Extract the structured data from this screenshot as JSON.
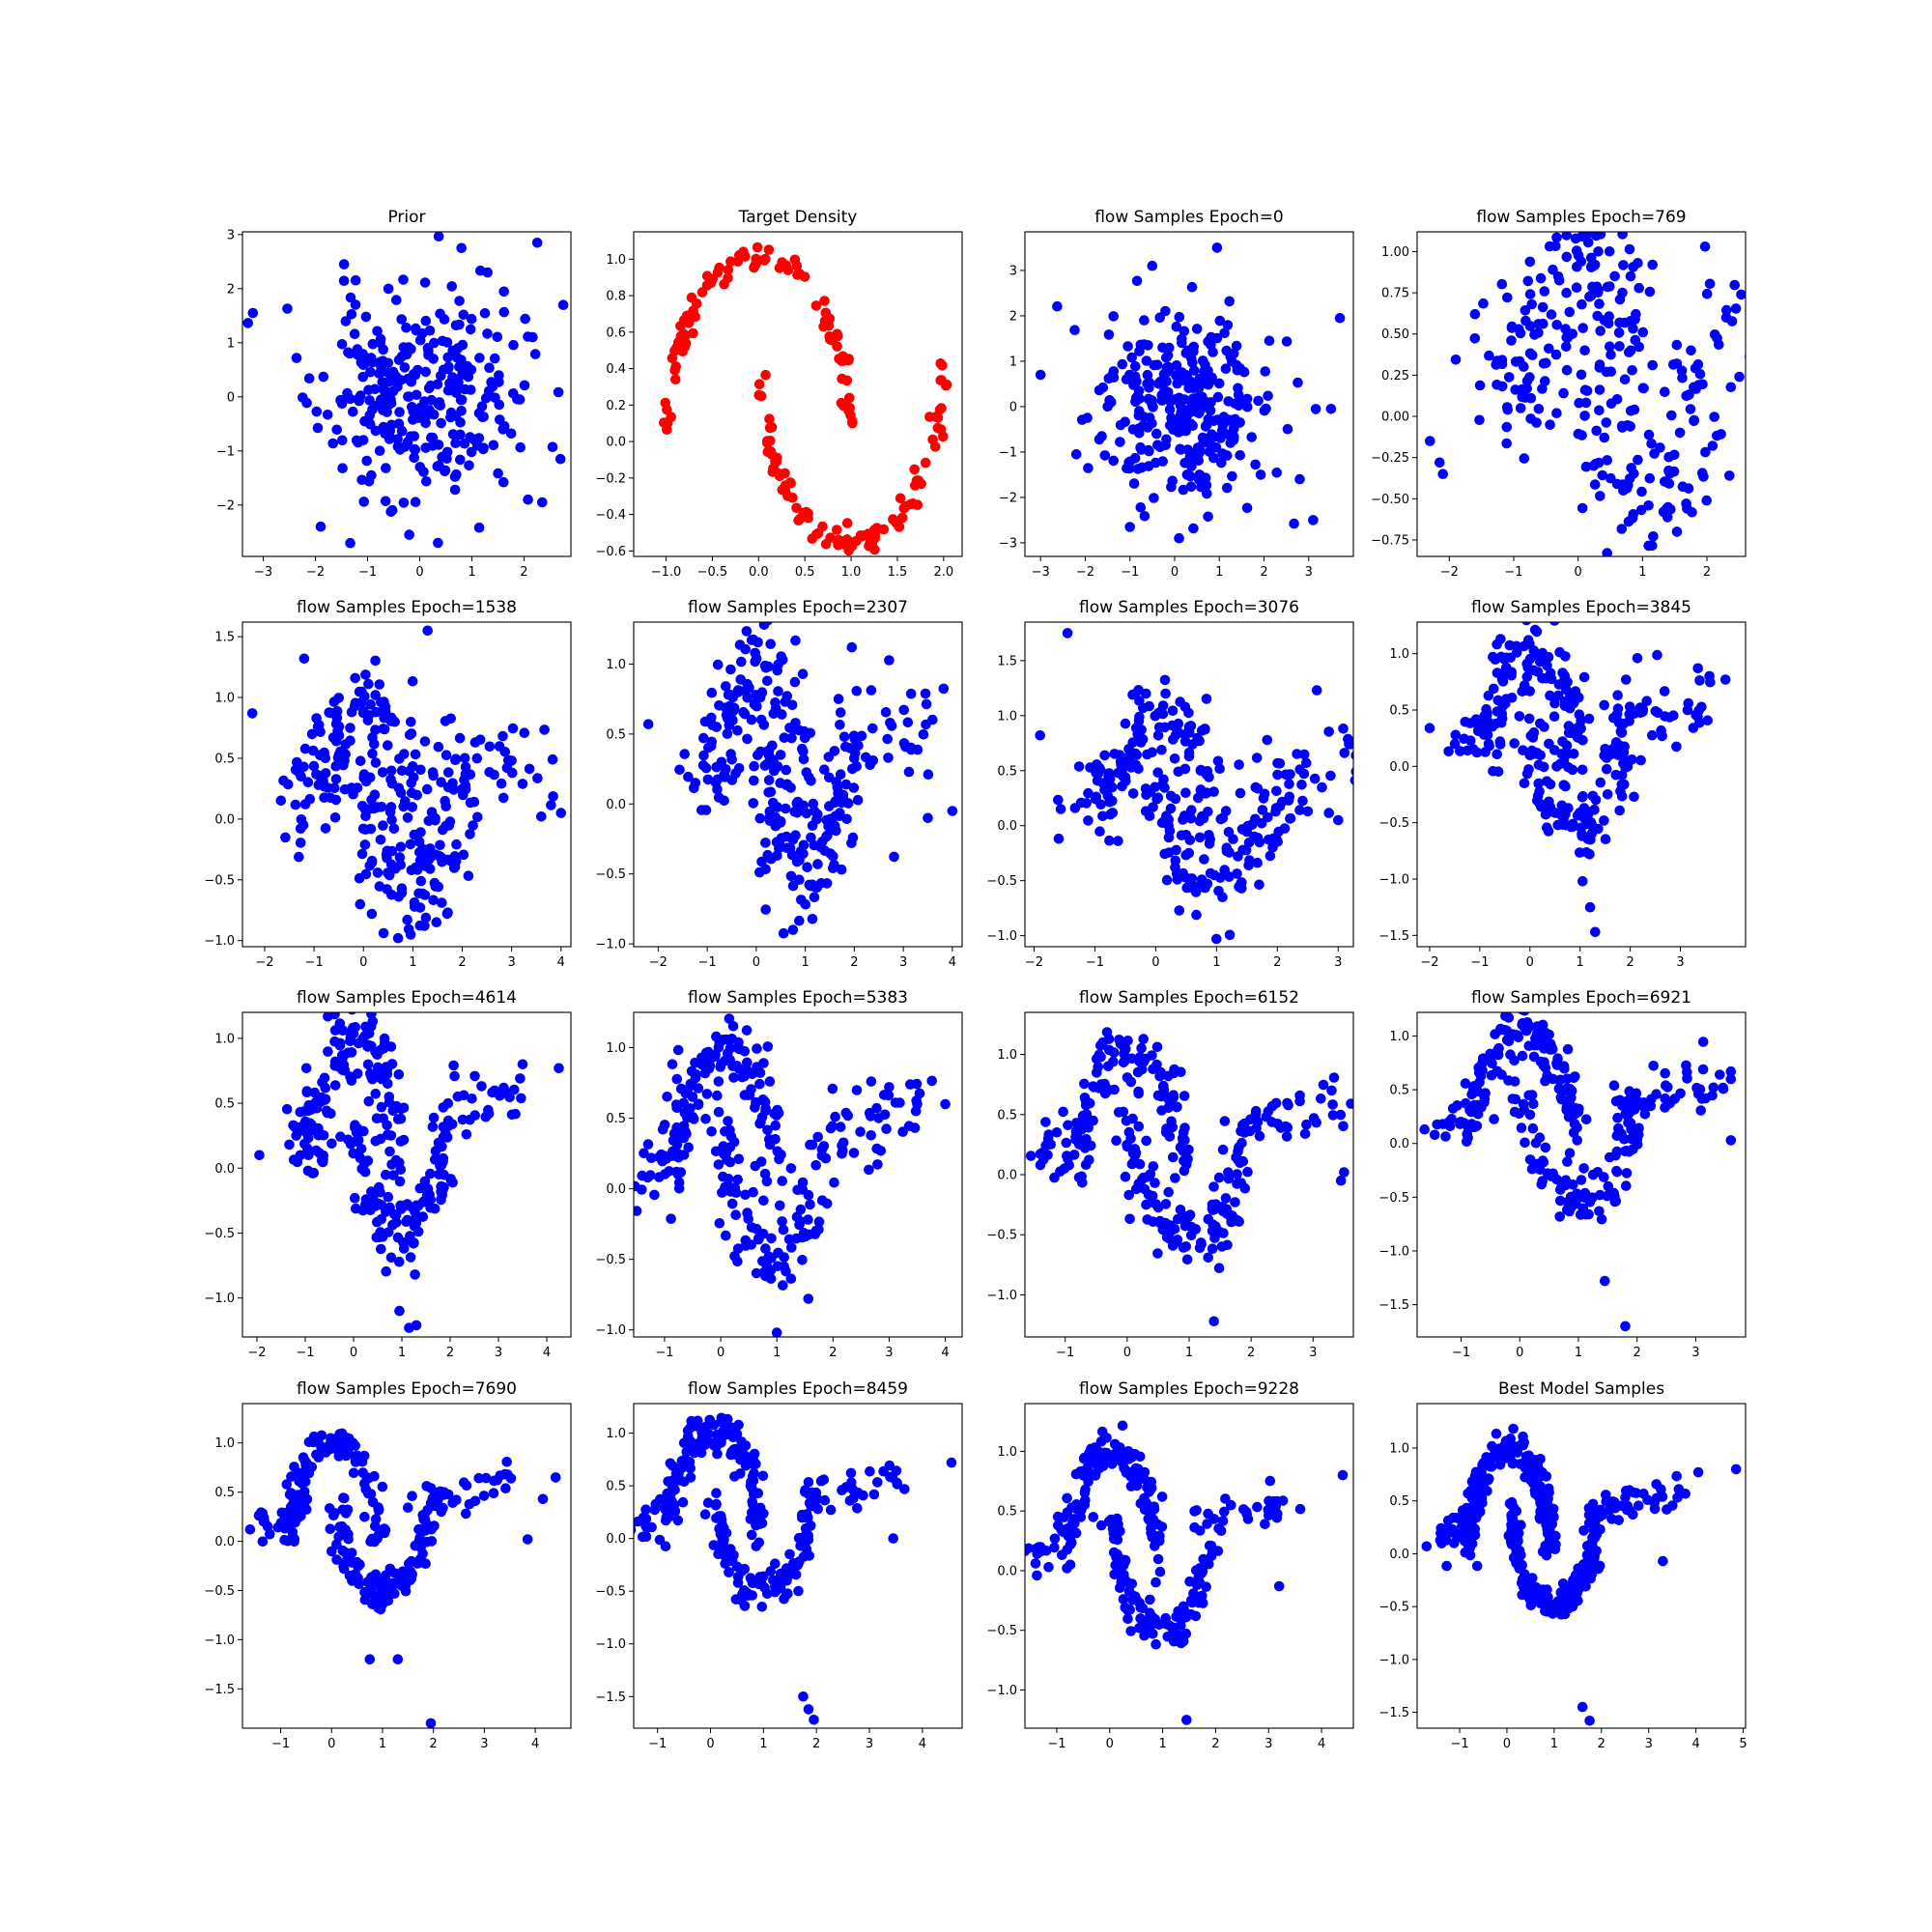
{
  "figure": {
    "background": "#ffffff",
    "layout": "4x4 grid"
  },
  "chart_data": [
    {
      "type": "scatter",
      "title": "Prior",
      "color": "#0000ff",
      "xlim": [
        -3.4,
        2.9
      ],
      "ylim": [
        -2.95,
        3.05
      ],
      "xticks": [
        -3,
        -2,
        -1,
        0,
        1,
        2
      ],
      "yticks": [
        -2,
        -1,
        0,
        1,
        2,
        3
      ],
      "xtick_labels": [
        "−3",
        "−2",
        "−1",
        "0",
        "1",
        "2"
      ],
      "ytick_labels": [
        "−2",
        "−1",
        "0",
        "1",
        "2",
        "3"
      ],
      "shape": "isotropic-gaussian",
      "cx": 0.0,
      "cy": 0.0,
      "sx": 0.95,
      "sy": 0.95,
      "n": 300,
      "seed": 11,
      "points": [
        [
          -3.2,
          1.55
        ],
        [
          0.8,
          2.75
        ],
        [
          -1.45,
          2.45
        ],
        [
          1.3,
          2.3
        ],
        [
          2.7,
          -1.15
        ],
        [
          0.35,
          -2.7
        ],
        [
          -0.2,
          -2.55
        ],
        [
          -1.9,
          -2.4
        ],
        [
          2.35,
          -1.95
        ]
      ]
    },
    {
      "type": "scatter",
      "title": "Target Density",
      "color": "#ff0000",
      "xlim": [
        -1.35,
        2.2
      ],
      "ylim": [
        -0.63,
        1.15
      ],
      "xticks": [
        -1.0,
        -0.5,
        0.0,
        0.5,
        1.0,
        1.5,
        2.0
      ],
      "yticks": [
        -0.6,
        -0.4,
        -0.2,
        0.0,
        0.2,
        0.4,
        0.6,
        0.8,
        1.0
      ],
      "xtick_labels": [
        "−1.0",
        "−0.5",
        "0.0",
        "0.5",
        "1.0",
        "1.5",
        "2.0"
      ],
      "ytick_labels": [
        "−0.6",
        "−0.4",
        "−0.2",
        "0.0",
        "0.2",
        "0.4",
        "0.6",
        "0.8",
        "1.0"
      ],
      "shape": "two-moons",
      "n": 200,
      "noise": 0.035,
      "seed": 5,
      "points": []
    },
    {
      "type": "scatter",
      "title": "flow Samples Epoch=0",
      "color": "#0000ff",
      "xlim": [
        -3.35,
        4.0
      ],
      "ylim": [
        -3.3,
        3.85
      ],
      "xticks": [
        -3,
        -2,
        -1,
        0,
        1,
        2,
        3
      ],
      "yticks": [
        -3,
        -2,
        -1,
        0,
        1,
        2,
        3
      ],
      "xtick_labels": [
        "−3",
        "−2",
        "−1",
        "0",
        "1",
        "2",
        "3"
      ],
      "ytick_labels": [
        "−3",
        "−2",
        "−1",
        "0",
        "1",
        "2",
        "3"
      ],
      "shape": "isotropic-gaussian",
      "cx": 0.2,
      "cy": 0.0,
      "sx": 1.0,
      "sy": 1.05,
      "n": 300,
      "seed": 21,
      "points": [
        [
          0.95,
          3.5
        ],
        [
          -0.5,
          3.1
        ],
        [
          -3.0,
          0.7
        ],
        [
          3.7,
          1.95
        ],
        [
          3.5,
          -0.05
        ],
        [
          0.1,
          -2.9
        ],
        [
          -1.0,
          -2.65
        ],
        [
          3.1,
          -2.5
        ],
        [
          2.8,
          -1.6
        ],
        [
          -2.2,
          -1.05
        ]
      ]
    },
    {
      "type": "scatter",
      "title": "flow Samples Epoch=769",
      "color": "#0000ff",
      "xlim": [
        -2.5,
        2.6
      ],
      "ylim": [
        -0.85,
        1.12
      ],
      "xticks": [
        -2,
        -1,
        0,
        1,
        2
      ],
      "yticks": [
        -0.75,
        -0.5,
        -0.25,
        0.0,
        0.25,
        0.5,
        0.75,
        1.0
      ],
      "xtick_labels": [
        "−2",
        "−1",
        "0",
        "1",
        "2"
      ],
      "ytick_labels": [
        "−0.75",
        "−0.50",
        "−0.25",
        "0.00",
        "0.25",
        "0.50",
        "0.75",
        "1.00"
      ],
      "shape": "flow-moons",
      "stage": 0.3,
      "n": 300,
      "seed": 31,
      "points": [
        [
          -2.3,
          -0.15
        ],
        [
          -2.15,
          -0.28
        ],
        [
          -2.1,
          -0.35
        ],
        [
          2.3,
          0.6
        ],
        [
          2.35,
          -0.36
        ],
        [
          0.45,
          -0.83
        ]
      ]
    },
    {
      "type": "scatter",
      "title": "flow Samples Epoch=1538",
      "color": "#0000ff",
      "xlim": [
        -2.45,
        4.2
      ],
      "ylim": [
        -1.05,
        1.62
      ],
      "xticks": [
        -2,
        -1,
        0,
        1,
        2,
        3,
        4
      ],
      "yticks": [
        -1.0,
        -0.5,
        0.0,
        0.5,
        1.0,
        1.5
      ],
      "xtick_labels": [
        "−2",
        "−1",
        "0",
        "1",
        "2",
        "3",
        "4"
      ],
      "ytick_labels": [
        "−1.0",
        "−0.5",
        "0.0",
        "0.5",
        "1.0",
        "1.5"
      ],
      "shape": "flow-moons",
      "stage": 0.4,
      "n": 300,
      "seed": 41,
      "points": [
        [
          1.3,
          1.55
        ],
        [
          -1.2,
          1.32
        ],
        [
          3.6,
          0.02
        ],
        [
          4.0,
          0.05
        ],
        [
          0.7,
          -0.98
        ],
        [
          -2.25,
          0.87
        ]
      ]
    },
    {
      "type": "scatter",
      "title": "flow Samples Epoch=2307",
      "color": "#0000ff",
      "xlim": [
        -2.5,
        4.2
      ],
      "ylim": [
        -1.02,
        1.3
      ],
      "xticks": [
        -2,
        -1,
        0,
        1,
        2,
        3,
        4
      ],
      "yticks": [
        -1.0,
        -0.5,
        0.0,
        0.5,
        1.0
      ],
      "xtick_labels": [
        "−2",
        "−1",
        "0",
        "1",
        "2",
        "3",
        "4"
      ],
      "ytick_labels": [
        "−1.0",
        "−0.5",
        "0.0",
        "0.5",
        "1.0"
      ],
      "shape": "flow-moons",
      "stage": 0.5,
      "n": 300,
      "seed": 51,
      "points": [
        [
          4.0,
          -0.05
        ],
        [
          3.5,
          -0.1
        ],
        [
          0.75,
          -0.9
        ],
        [
          -2.2,
          0.57
        ],
        [
          1.95,
          1.12
        ]
      ]
    },
    {
      "type": "scatter",
      "title": "flow Samples Epoch=3076",
      "color": "#0000ff",
      "xlim": [
        -2.15,
        3.25
      ],
      "ylim": [
        -1.1,
        1.85
      ],
      "xticks": [
        -2,
        -1,
        0,
        1,
        2,
        3
      ],
      "yticks": [
        -1.0,
        -0.5,
        0.0,
        0.5,
        1.0,
        1.5
      ],
      "xtick_labels": [
        "−2",
        "−1",
        "0",
        "1",
        "2",
        "3"
      ],
      "ytick_labels": [
        "−1.0",
        "−0.5",
        "0.0",
        "0.5",
        "1.0",
        "1.5"
      ],
      "shape": "flow-moons",
      "stage": 0.55,
      "n": 300,
      "seed": 61,
      "points": [
        [
          -1.45,
          1.75
        ],
        [
          1.0,
          -1.03
        ],
        [
          3.0,
          0.05
        ],
        [
          2.65,
          1.23
        ],
        [
          -1.9,
          0.82
        ]
      ]
    },
    {
      "type": "scatter",
      "title": "flow Samples Epoch=3845",
      "color": "#0000ff",
      "xlim": [
        -2.25,
        4.3
      ],
      "ylim": [
        -1.6,
        1.28
      ],
      "xticks": [
        -2,
        -1,
        0,
        1,
        2,
        3
      ],
      "yticks": [
        -1.5,
        -1.0,
        -0.5,
        0.0,
        0.5,
        1.0
      ],
      "xtick_labels": [
        "−2",
        "−1",
        "0",
        "1",
        "2",
        "3"
      ],
      "ytick_labels": [
        "−1.5",
        "−1.0",
        "−0.5",
        "0.0",
        "0.5",
        "1.0"
      ],
      "shape": "flow-moons",
      "stage": 0.6,
      "n": 300,
      "seed": 71,
      "points": [
        [
          1.3,
          -1.47
        ],
        [
          1.2,
          -1.25
        ],
        [
          1.05,
          -1.02
        ],
        [
          3.35,
          0.87
        ],
        [
          3.9,
          0.77
        ],
        [
          -2.0,
          0.34
        ]
      ]
    },
    {
      "type": "scatter",
      "title": "flow Samples Epoch=4614",
      "color": "#0000ff",
      "xlim": [
        -2.3,
        4.5
      ],
      "ylim": [
        -1.3,
        1.2
      ],
      "xticks": [
        -2,
        -1,
        0,
        1,
        2,
        3,
        4
      ],
      "yticks": [
        -1.0,
        -0.5,
        0.0,
        0.5,
        1.0
      ],
      "xtick_labels": [
        "−2",
        "−1",
        "0",
        "1",
        "2",
        "3",
        "4"
      ],
      "ytick_labels": [
        "−1.0",
        "−0.5",
        "0.0",
        "0.5",
        "1.0"
      ],
      "shape": "flow-moons",
      "stage": 0.7,
      "n": 300,
      "seed": 81,
      "points": [
        [
          4.25,
          0.77
        ],
        [
          3.5,
          0.8
        ],
        [
          -1.95,
          0.1
        ],
        [
          1.3,
          -1.21
        ],
        [
          1.15,
          -1.23
        ],
        [
          0.95,
          -1.1
        ]
      ]
    },
    {
      "type": "scatter",
      "title": "flow Samples Epoch=5383",
      "color": "#0000ff",
      "xlim": [
        -1.55,
        4.3
      ],
      "ylim": [
        -1.05,
        1.25
      ],
      "xticks": [
        -1,
        0,
        1,
        2,
        3,
        4
      ],
      "yticks": [
        -1.0,
        -0.5,
        0.0,
        0.5,
        1.0
      ],
      "xtick_labels": [
        "−1",
        "0",
        "1",
        "2",
        "3",
        "4"
      ],
      "ytick_labels": [
        "−1.0",
        "−0.5",
        "0.0",
        "0.5",
        "1.0"
      ],
      "shape": "flow-moons",
      "stage": 0.75,
      "n": 300,
      "seed": 91,
      "points": [
        [
          4.0,
          0.6
        ],
        [
          3.5,
          0.6
        ],
        [
          1.0,
          -1.02
        ],
        [
          -1.3,
          0.08
        ],
        [
          3.0,
          0.72
        ]
      ]
    },
    {
      "type": "scatter",
      "title": "flow Samples Epoch=6152",
      "color": "#0000ff",
      "xlim": [
        -1.65,
        3.65
      ],
      "ylim": [
        -1.35,
        1.35
      ],
      "xticks": [
        -1,
        0,
        1,
        2,
        3
      ],
      "yticks": [
        -1.0,
        -0.5,
        0.0,
        0.5,
        1.0
      ],
      "xtick_labels": [
        "−1",
        "0",
        "1",
        "2",
        "3"
      ],
      "ytick_labels": [
        "−1.0",
        "−0.5",
        "0.0",
        "0.5",
        "1.0"
      ],
      "shape": "flow-moons",
      "stage": 0.8,
      "n": 300,
      "seed": 101,
      "points": [
        [
          1.4,
          -1.22
        ],
        [
          3.45,
          -0.05
        ],
        [
          3.5,
          0.02
        ],
        [
          -1.4,
          0.08
        ],
        [
          3.3,
          0.7
        ]
      ]
    },
    {
      "type": "scatter",
      "title": "flow Samples Epoch=6921",
      "color": "#0000ff",
      "xlim": [
        -1.75,
        3.85
      ],
      "ylim": [
        -1.8,
        1.22
      ],
      "xticks": [
        -1,
        0,
        1,
        2,
        3
      ],
      "yticks": [
        -1.5,
        -1.0,
        -0.5,
        0.0,
        0.5,
        1.0
      ],
      "xtick_labels": [
        "−1",
        "0",
        "1",
        "2",
        "3"
      ],
      "ytick_labels": [
        "−1.5",
        "−1.0",
        "−0.5",
        "0.0",
        "0.5",
        "1.0"
      ],
      "shape": "flow-moons",
      "stage": 0.85,
      "n": 300,
      "seed": 111,
      "points": [
        [
          1.8,
          -1.7
        ],
        [
          1.45,
          -1.28
        ],
        [
          3.6,
          0.03
        ],
        [
          3.6,
          0.67
        ],
        [
          -1.45,
          0.08
        ]
      ]
    },
    {
      "type": "scatter",
      "title": "flow Samples Epoch=7690",
      "color": "#0000ff",
      "xlim": [
        -1.75,
        4.7
      ],
      "ylim": [
        -1.9,
        1.4
      ],
      "xticks": [
        -1,
        0,
        1,
        2,
        3,
        4
      ],
      "yticks": [
        -1.5,
        -1.0,
        -0.5,
        0.0,
        0.5,
        1.0
      ],
      "xtick_labels": [
        "−1",
        "0",
        "1",
        "2",
        "3",
        "4"
      ],
      "ytick_labels": [
        "−1.5",
        "−1.0",
        "−0.5",
        "0.0",
        "0.5",
        "1.0"
      ],
      "shape": "flow-moons",
      "stage": 0.9,
      "n": 300,
      "seed": 121,
      "points": [
        [
          1.95,
          -1.85
        ],
        [
          0.75,
          -1.2
        ],
        [
          1.3,
          -1.2
        ],
        [
          3.85,
          0.02
        ],
        [
          4.4,
          0.65
        ],
        [
          4.15,
          0.43
        ],
        [
          -1.6,
          0.12
        ]
      ]
    },
    {
      "type": "scatter",
      "title": "flow Samples Epoch=8459",
      "color": "#0000ff",
      "xlim": [
        -1.45,
        4.75
      ],
      "ylim": [
        -1.8,
        1.28
      ],
      "xticks": [
        -1,
        0,
        1,
        2,
        3,
        4
      ],
      "yticks": [
        -1.5,
        -1.0,
        -0.5,
        0.0,
        0.5,
        1.0
      ],
      "xtick_labels": [
        "−1",
        "0",
        "1",
        "2",
        "3",
        "4"
      ],
      "ytick_labels": [
        "−1.5",
        "−1.0",
        "−0.5",
        "0.0",
        "0.5",
        "1.0"
      ],
      "shape": "flow-moons",
      "stage": 0.92,
      "n": 300,
      "seed": 131,
      "points": [
        [
          1.75,
          -1.5
        ],
        [
          1.85,
          -1.62
        ],
        [
          1.95,
          -1.72
        ],
        [
          4.55,
          0.72
        ],
        [
          3.45,
          0.0
        ],
        [
          -1.2,
          0.1
        ]
      ]
    },
    {
      "type": "scatter",
      "title": "flow Samples Epoch=9228",
      "color": "#0000ff",
      "xlim": [
        -1.6,
        4.6
      ],
      "ylim": [
        -1.32,
        1.4
      ],
      "xticks": [
        -1,
        0,
        1,
        2,
        3,
        4
      ],
      "yticks": [
        -1.0,
        -0.5,
        0.0,
        0.5,
        1.0
      ],
      "xtick_labels": [
        "−1",
        "0",
        "1",
        "2",
        "3",
        "4"
      ],
      "ytick_labels": [
        "−1.0",
        "−0.5",
        "0.0",
        "0.5",
        "1.0"
      ],
      "shape": "flow-moons",
      "stage": 0.95,
      "n": 300,
      "seed": 141,
      "points": [
        [
          1.45,
          -1.25
        ],
        [
          4.4,
          0.8
        ],
        [
          3.2,
          -0.13
        ],
        [
          -1.4,
          0.06
        ]
      ]
    },
    {
      "type": "scatter",
      "title": "Best Model Samples",
      "color": "#0000ff",
      "xlim": [
        -1.9,
        5.05
      ],
      "ylim": [
        -1.65,
        1.42
      ],
      "xticks": [
        -1,
        0,
        1,
        2,
        3,
        4,
        5
      ],
      "yticks": [
        -1.5,
        -1.0,
        -0.5,
        0.0,
        0.5,
        1.0
      ],
      "xtick_labels": [
        "−1",
        "0",
        "1",
        "2",
        "3",
        "4",
        "5"
      ],
      "ytick_labels": [
        "−1.5",
        "−1.0",
        "−0.5",
        "0.0",
        "0.5",
        "1.0"
      ],
      "shape": "flow-moons",
      "stage": 1.0,
      "n": 500,
      "seed": 151,
      "points": [
        [
          1.75,
          -1.58
        ],
        [
          1.6,
          -1.45
        ],
        [
          4.85,
          0.8
        ],
        [
          4.05,
          0.77
        ],
        [
          3.3,
          -0.07
        ],
        [
          -1.7,
          0.07
        ]
      ]
    }
  ]
}
